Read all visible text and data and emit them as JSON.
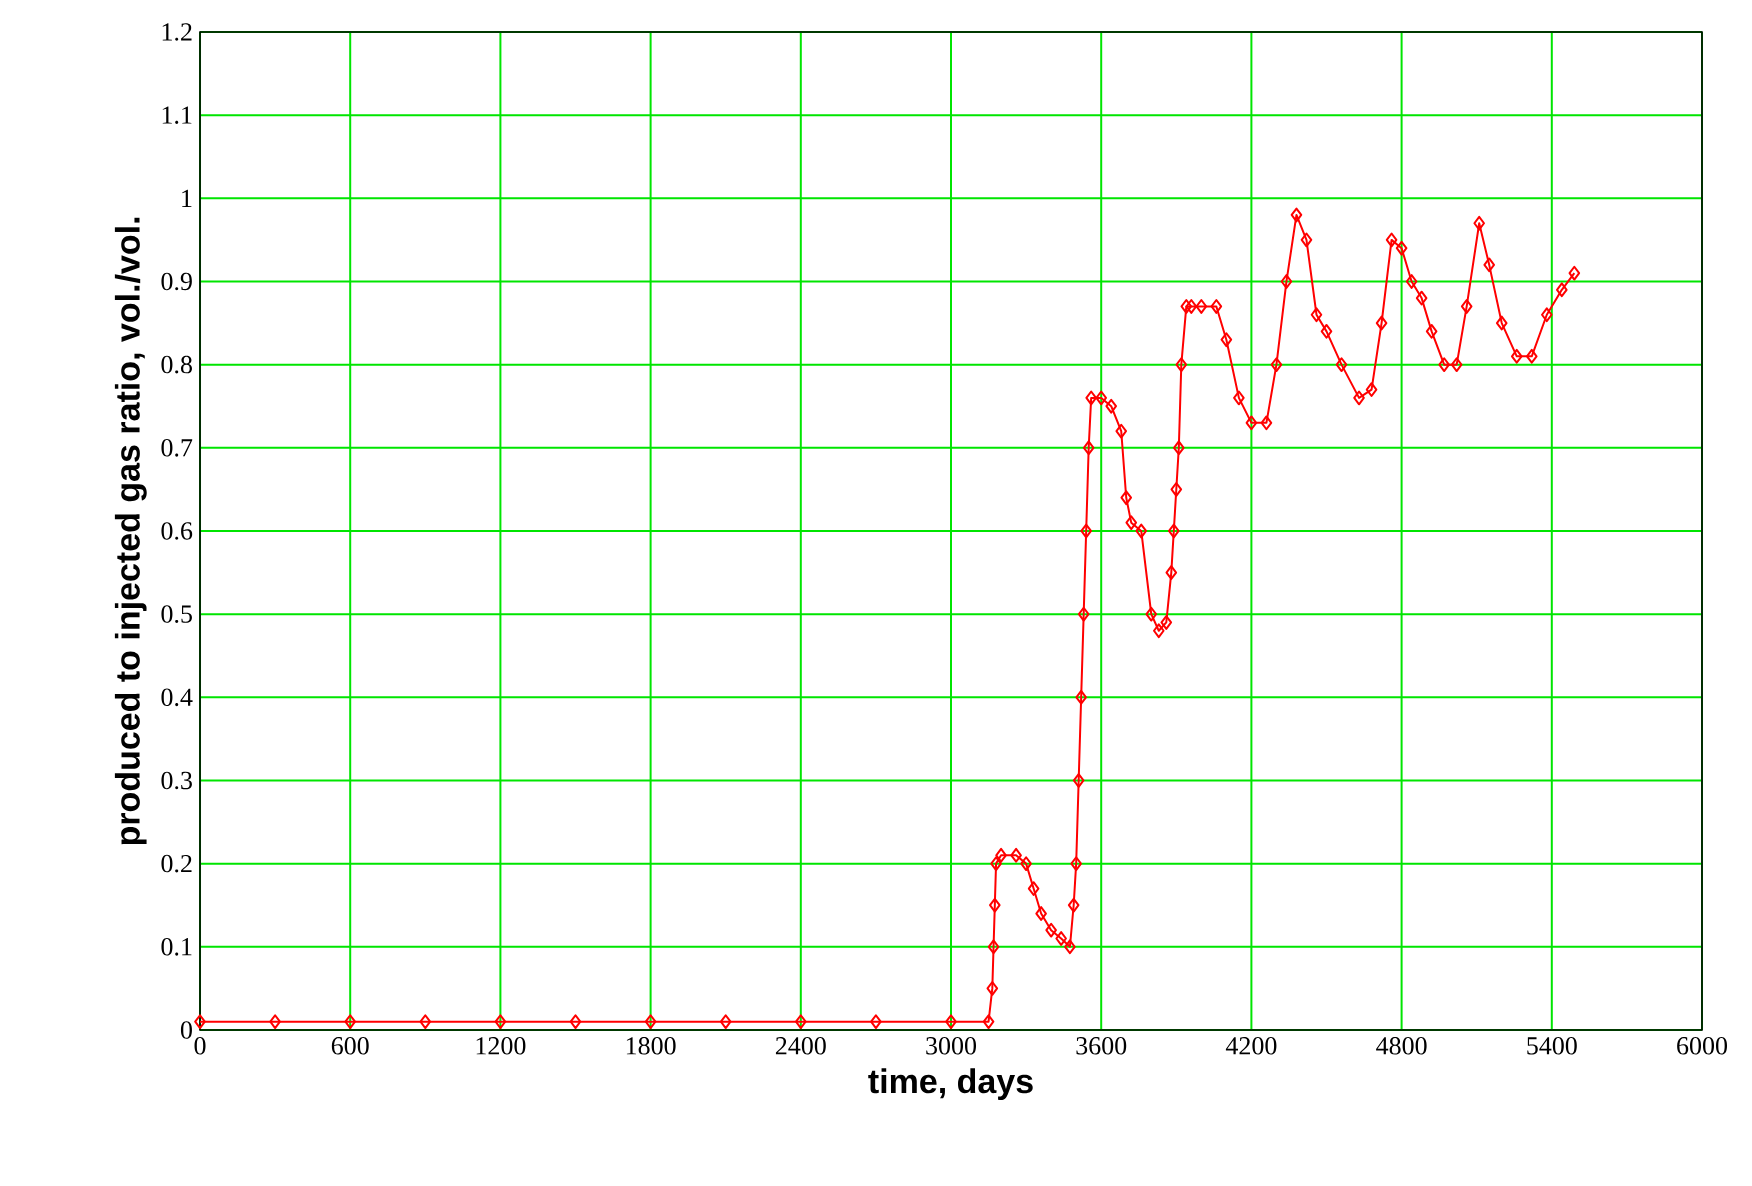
{
  "chart_data": {
    "type": "line",
    "xlabel": "time, days",
    "ylabel": "produced to injected gas ratio, vol./vol.",
    "xlim": [
      0,
      6000
    ],
    "xticks": [
      0,
      600,
      1200,
      1800,
      2400,
      3000,
      3600,
      4200,
      4800,
      5400,
      6000
    ],
    "ylim": [
      0,
      1.2
    ],
    "yticks": [
      0,
      0.1,
      0.2,
      0.3,
      0.4,
      0.5,
      0.6,
      0.7,
      0.8,
      0.9,
      1,
      1.1,
      1.2
    ],
    "grid": true,
    "marker": "diamond",
    "line_style": "solid",
    "series": [
      {
        "color": "#ff0000",
        "x": [
          0,
          300,
          600,
          900,
          1200,
          1500,
          1800,
          2100,
          2400,
          2700,
          3000,
          3150,
          3165,
          3170,
          3175,
          3180,
          3200,
          3260,
          3300,
          3330,
          3360,
          3400,
          3440,
          3475,
          3490,
          3500,
          3510,
          3520,
          3530,
          3540,
          3550,
          3560,
          3600,
          3640,
          3680,
          3700,
          3720,
          3760,
          3800,
          3830,
          3860,
          3880,
          3890,
          3900,
          3910,
          3920,
          3940,
          3960,
          4000,
          4060,
          4100,
          4150,
          4200,
          4260,
          4300,
          4340,
          4380,
          4420,
          4460,
          4500,
          4560,
          4630,
          4680,
          4720,
          4760,
          4800,
          4840,
          4880,
          4920,
          4970,
          5020,
          5060,
          5110,
          5150,
          5200,
          5260,
          5320,
          5380,
          5440,
          5490
        ],
        "values": [
          0.01,
          0.01,
          0.01,
          0.01,
          0.01,
          0.01,
          0.01,
          0.01,
          0.01,
          0.01,
          0.01,
          0.01,
          0.05,
          0.1,
          0.15,
          0.2,
          0.21,
          0.21,
          0.2,
          0.17,
          0.14,
          0.12,
          0.11,
          0.1,
          0.15,
          0.2,
          0.3,
          0.4,
          0.5,
          0.6,
          0.7,
          0.76,
          0.76,
          0.75,
          0.72,
          0.64,
          0.61,
          0.6,
          0.5,
          0.48,
          0.49,
          0.55,
          0.6,
          0.65,
          0.7,
          0.8,
          0.87,
          0.87,
          0.87,
          0.87,
          0.83,
          0.76,
          0.73,
          0.73,
          0.8,
          0.9,
          0.98,
          0.95,
          0.86,
          0.84,
          0.8,
          0.76,
          0.77,
          0.85,
          0.95,
          0.94,
          0.9,
          0.88,
          0.84,
          0.8,
          0.8,
          0.87,
          0.97,
          0.92,
          0.85,
          0.81,
          0.81,
          0.86,
          0.89,
          0.91
        ]
      }
    ]
  }
}
